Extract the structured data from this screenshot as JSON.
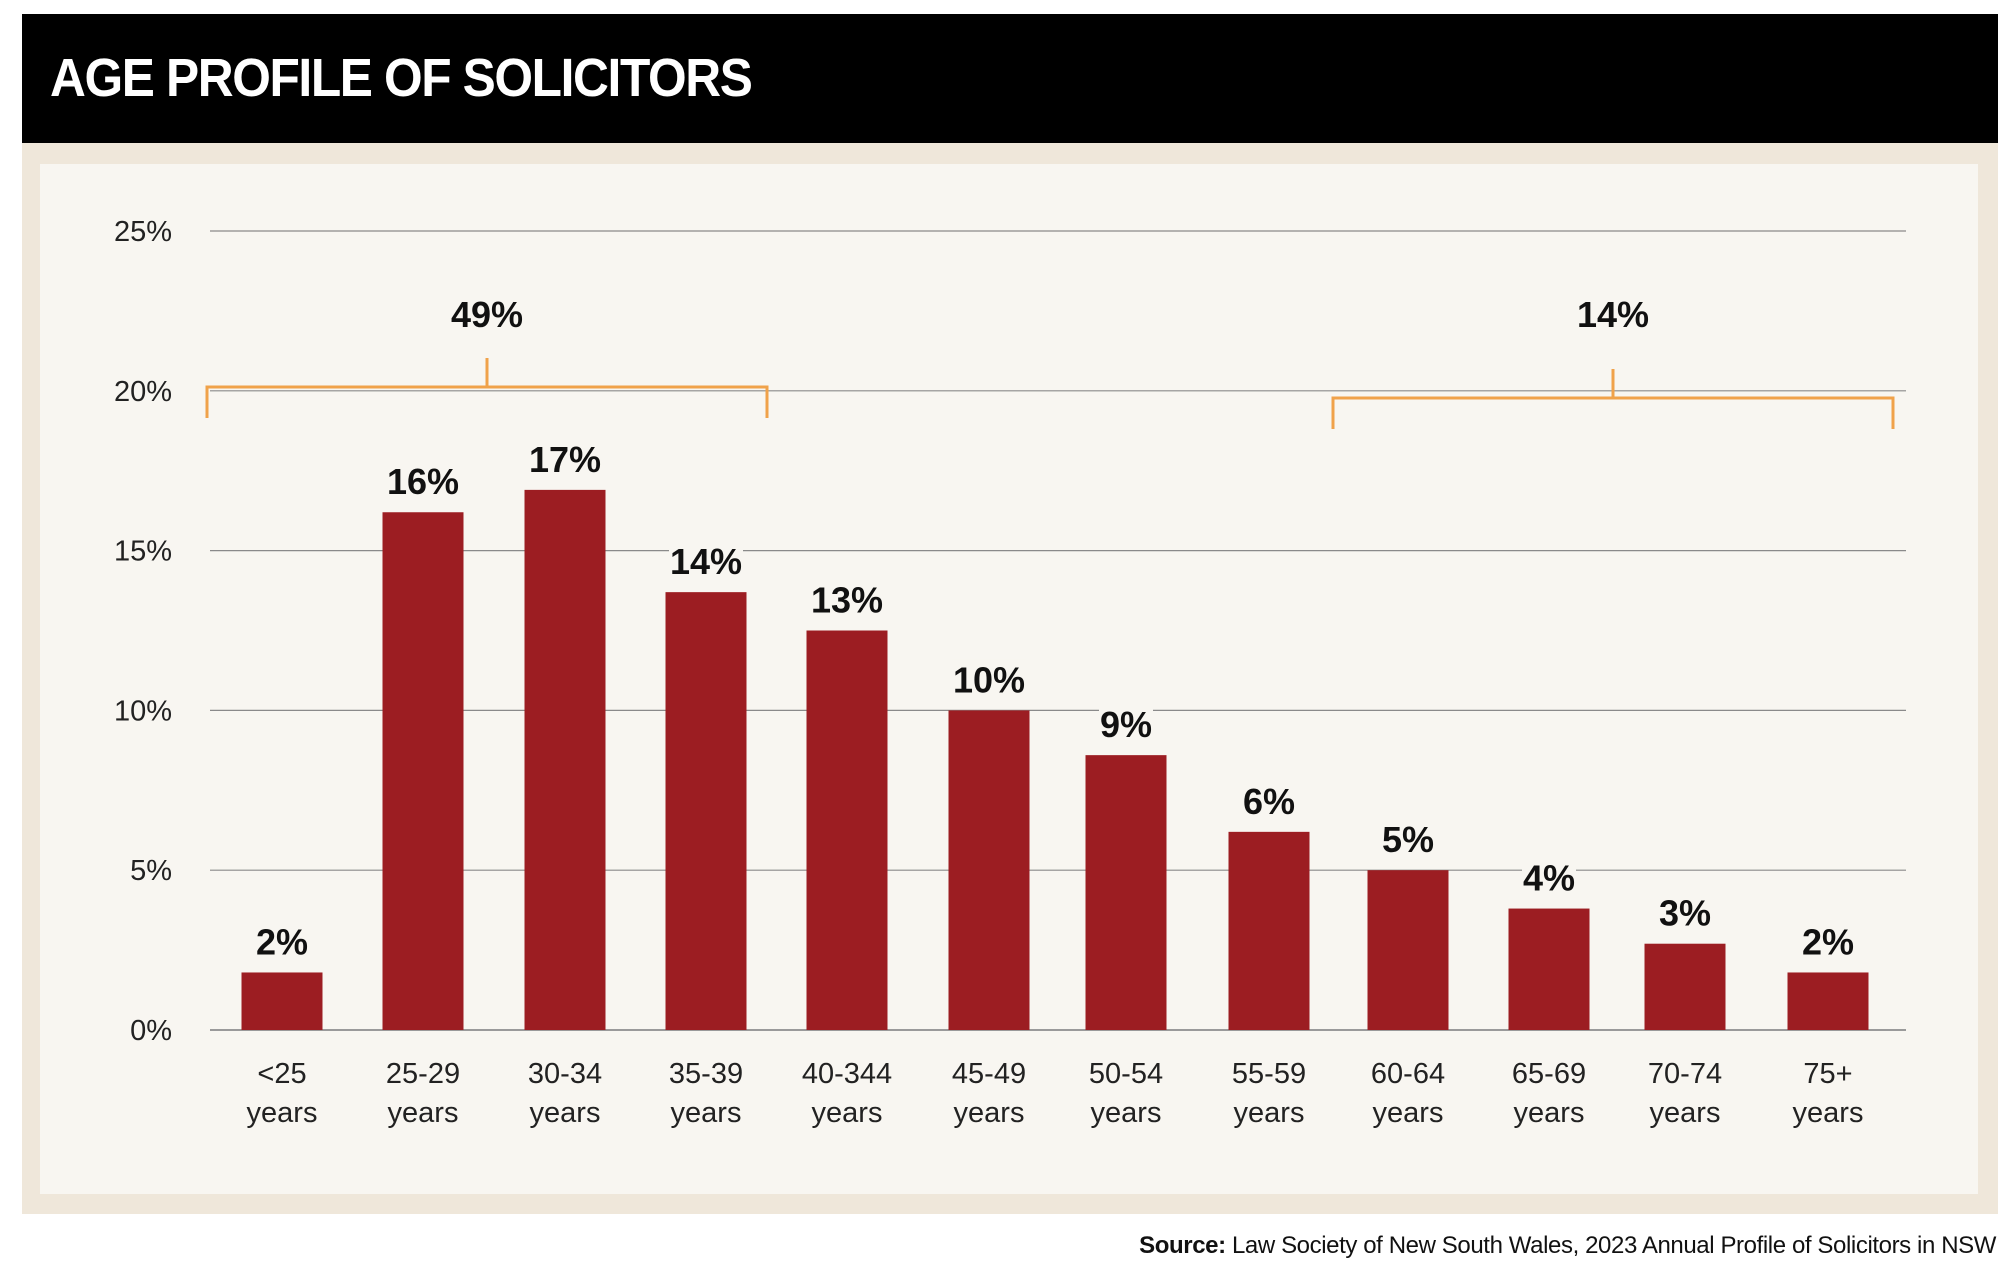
{
  "header": {
    "title": "AGE PROFILE OF SOLICITORS"
  },
  "chart_data": {
    "type": "bar",
    "title": "AGE PROFILE OF SOLICITORS",
    "xlabel": "",
    "ylabel": "",
    "ylim": [
      0,
      25
    ],
    "yticks": [
      0,
      5,
      10,
      15,
      20,
      25
    ],
    "ytick_labels": [
      "0%",
      "5%",
      "10%",
      "15%",
      "20%",
      "25%"
    ],
    "grid": true,
    "categories": [
      [
        "<25",
        "years"
      ],
      [
        "25-29",
        "years"
      ],
      [
        "30-34",
        "years"
      ],
      [
        "35-39",
        "years"
      ],
      [
        "40-344",
        "years"
      ],
      [
        "45-49",
        "years"
      ],
      [
        "50-54",
        "years"
      ],
      [
        "55-59",
        "years"
      ],
      [
        "60-64",
        "years"
      ],
      [
        "65-69",
        "years"
      ],
      [
        "70-74",
        "years"
      ],
      [
        "75+",
        "years"
      ]
    ],
    "values": [
      1.8,
      16.2,
      16.9,
      13.7,
      12.5,
      10.0,
      8.6,
      6.2,
      5.0,
      3.8,
      2.7,
      1.8
    ],
    "data_labels": [
      "2%",
      "16%",
      "17%",
      "14%",
      "13%",
      "10%",
      "9%",
      "6%",
      "5%",
      "4%",
      "3%",
      "2%"
    ],
    "bar_color": "#9c1d22",
    "annotations": [
      {
        "label": "49%",
        "from_category": 0,
        "to_category": 3,
        "color": "#f0a24a"
      },
      {
        "label": "14%",
        "from_category": 8,
        "to_category": 11,
        "color": "#f0a24a"
      }
    ]
  },
  "source": {
    "label": "Source:",
    "text": " Law Society of New South Wales, 2023 Annual Profile of Solicitors in NSW"
  },
  "colors": {
    "header_background": "#000000",
    "header_text": "#ffffff",
    "frame": "#efe7da",
    "panel": "#f8f6f1",
    "gridline": "#8a8a8a",
    "bracket": "#f0a24a",
    "bar": "#9c1d22"
  }
}
